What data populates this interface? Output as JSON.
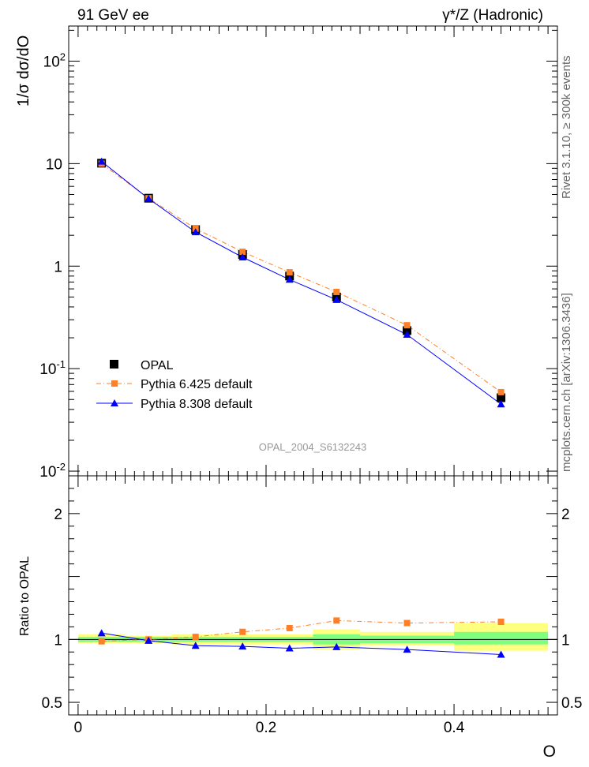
{
  "header": {
    "left": "91 GeV ee",
    "right": "γ*/Z (Hadronic)"
  },
  "side_labels": {
    "top": "Rivet 3.1.10, ≥ 300k events",
    "bottom": "mcplots.cern.ch [arXiv:1306.3436]"
  },
  "watermark": "OPAL_2004_S6132243",
  "colors": {
    "data": "#000000",
    "pythia6": "#ff7f27",
    "pythia8": "#0000ff",
    "band_inner": "#7fff7f",
    "band_outer": "#ffff7f"
  },
  "chart_data": [
    {
      "type": "line",
      "panel": "main",
      "ylabel": "1/σ dσ/dO",
      "yscale": "log",
      "ylim": [
        0.009,
        220
      ],
      "xlim": [
        -0.01,
        0.51
      ],
      "y_ticks": [
        "10^{-2}",
        "10^{-1}",
        "1",
        "10",
        "10^{2}"
      ],
      "x": [
        0.025,
        0.075,
        0.125,
        0.175,
        0.225,
        0.275,
        0.35,
        0.45
      ],
      "bins": [
        [
          0,
          0.05
        ],
        [
          0.05,
          0.1
        ],
        [
          0.1,
          0.15
        ],
        [
          0.15,
          0.2
        ],
        [
          0.2,
          0.25
        ],
        [
          0.25,
          0.3
        ],
        [
          0.3,
          0.4
        ],
        [
          0.4,
          0.5
        ]
      ],
      "legend": {
        "position": "bottom-left",
        "entries": [
          "OPAL",
          "Pythia 6.425 default",
          "Pythia 8.308 default"
        ]
      },
      "series": [
        {
          "name": "OPAL",
          "marker": "square",
          "values": [
            10.1,
            4.6,
            2.27,
            1.3,
            0.8,
            0.5,
            0.235,
            0.052
          ]
        },
        {
          "name": "Pythia 6.425 default",
          "marker": "small-square",
          "line": "dash-dot",
          "values": [
            10.0,
            4.6,
            2.32,
            1.38,
            0.87,
            0.56,
            0.265,
            0.059
          ]
        },
        {
          "name": "Pythia 8.308 default",
          "marker": "triangle",
          "line": "solid",
          "values": [
            10.5,
            4.55,
            2.15,
            1.22,
            0.74,
            0.47,
            0.215,
            0.045
          ]
        }
      ]
    },
    {
      "type": "line",
      "panel": "ratio",
      "ylabel": "Ratio to OPAL",
      "xlabel": "O",
      "ylim": [
        0.4,
        2.3
      ],
      "xlim": [
        -0.01,
        0.51
      ],
      "y_ticks": [
        "0.5",
        "1",
        "2"
      ],
      "x_ticks": [
        "0",
        "0.2",
        "0.4"
      ],
      "x": [
        0.025,
        0.075,
        0.125,
        0.175,
        0.225,
        0.275,
        0.35,
        0.45
      ],
      "bins": [
        [
          0,
          0.05
        ],
        [
          0.05,
          0.1
        ],
        [
          0.1,
          0.15
        ],
        [
          0.15,
          0.2
        ],
        [
          0.2,
          0.25
        ],
        [
          0.25,
          0.3
        ],
        [
          0.3,
          0.4
        ],
        [
          0.4,
          0.5
        ]
      ],
      "band_inner": [
        [
          0.98,
          1.02
        ],
        [
          0.98,
          1.02
        ],
        [
          0.98,
          1.02
        ],
        [
          0.98,
          1.02
        ],
        [
          0.98,
          1.02
        ],
        [
          0.96,
          1.04
        ],
        [
          0.97,
          1.03
        ],
        [
          0.96,
          1.06
        ]
      ],
      "band_outer": [
        [
          0.97,
          1.04
        ],
        [
          0.97,
          1.03
        ],
        [
          0.96,
          1.04
        ],
        [
          0.96,
          1.04
        ],
        [
          0.96,
          1.04
        ],
        [
          0.92,
          1.08
        ],
        [
          0.95,
          1.06
        ],
        [
          0.91,
          1.13
        ]
      ],
      "series": [
        {
          "name": "Pythia 6.425 default",
          "values": [
            0.985,
            1.0,
            1.02,
            1.06,
            1.09,
            1.15,
            1.13,
            1.14
          ]
        },
        {
          "name": "Pythia 8.308 default",
          "values": [
            1.05,
            0.99,
            0.95,
            0.945,
            0.93,
            0.94,
            0.92,
            0.88
          ]
        }
      ]
    }
  ]
}
